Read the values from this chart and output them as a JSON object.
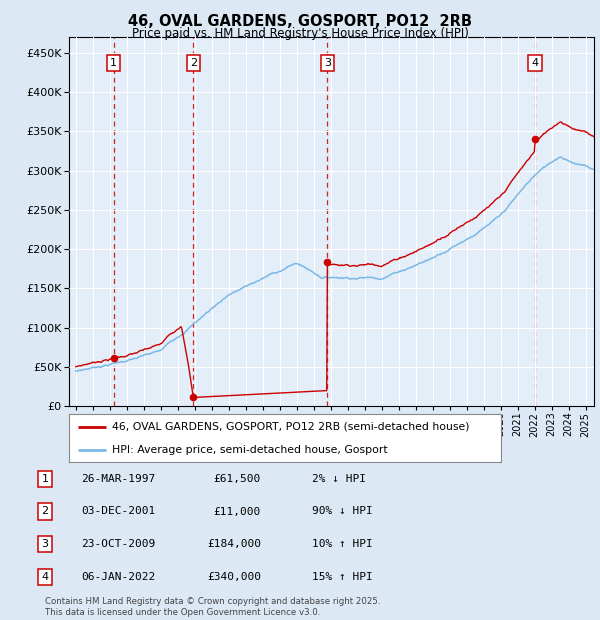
{
  "title": "46, OVAL GARDENS, GOSPORT, PO12  2RB",
  "subtitle": "Price paid vs. HM Land Registry's House Price Index (HPI)",
  "legend_property": "46, OVAL GARDENS, GOSPORT, PO12 2RB (semi-detached house)",
  "legend_hpi": "HPI: Average price, semi-detached house, Gosport",
  "footer": "Contains HM Land Registry data © Crown copyright and database right 2025.\nThis data is licensed under the Open Government Licence v3.0.",
  "transactions": [
    {
      "num": 1,
      "date": "26-MAR-1997",
      "price": 61500,
      "pct": "2%",
      "dir": "↓",
      "x": 1997.23
    },
    {
      "num": 2,
      "date": "03-DEC-2001",
      "price": 11000,
      "pct": "90%",
      "dir": "↓",
      "x": 2001.92
    },
    {
      "num": 3,
      "date": "23-OCT-2009",
      "price": 184000,
      "pct": "10%",
      "dir": "↑",
      "x": 2009.81
    },
    {
      "num": 4,
      "date": "06-JAN-2022",
      "price": 340000,
      "pct": "15%",
      "dir": "↑",
      "x": 2022.02
    }
  ],
  "hpi_color": "#7ab8e8",
  "price_color": "#cc0000",
  "vline_color": "#cc0000",
  "bg_color": "#dce9f5",
  "plot_bg": "#e4eef8",
  "grid_color": "#ffffff",
  "ylim": [
    0,
    470000
  ],
  "xlim_start": 1994.6,
  "xlim_end": 2025.5,
  "yticks": [
    0,
    50000,
    100000,
    150000,
    200000,
    250000,
    300000,
    350000,
    400000,
    450000
  ]
}
